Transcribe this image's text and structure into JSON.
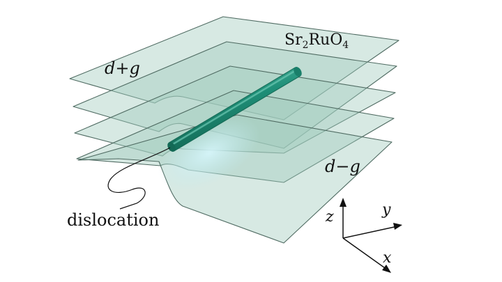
{
  "labels": {
    "material": {
      "prefix": "Sr",
      "sub1": "2",
      "mid": "RuO",
      "sub2": "4"
    },
    "top_phase": "d+g",
    "bottom_phase": "d−g",
    "defect": "dislocation"
  },
  "axes": {
    "z": "z",
    "y": "y",
    "x": "x"
  },
  "colors": {
    "plane_fill": "#9fcbbd",
    "plane_edge": "#4f6b62",
    "rod": "#1f8f78",
    "rod_dark": "#136955",
    "rod_light": "#54b8a2",
    "glow": "#bfeaf0",
    "ink": "#111111"
  }
}
